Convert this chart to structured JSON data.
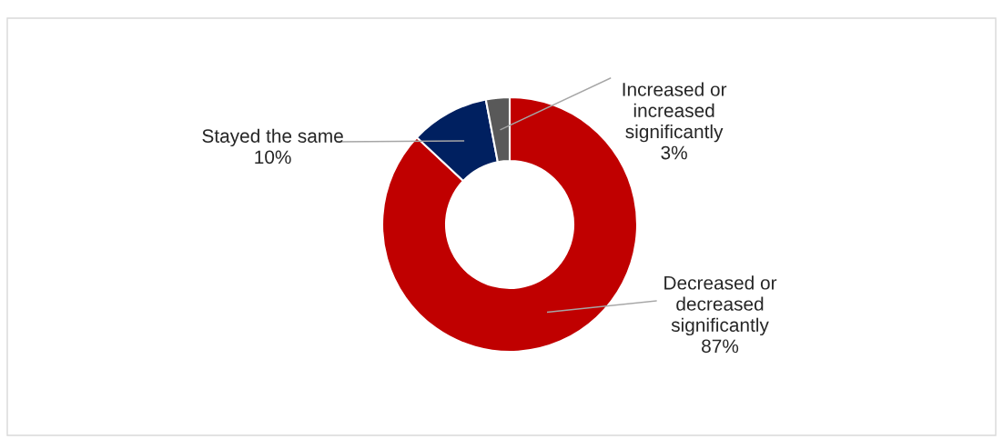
{
  "chart_data": {
    "type": "donut",
    "categories": [
      "Decreased or\ndecreased\nsignificantly",
      "Stayed the same",
      "Increased or\nincreased\nsignificantly"
    ],
    "values": [
      87,
      10,
      3
    ],
    "colors": [
      "#c00000",
      "#002060",
      "#595959"
    ],
    "value_labels": [
      "87%",
      "10%",
      "3%"
    ],
    "legend": false
  }
}
